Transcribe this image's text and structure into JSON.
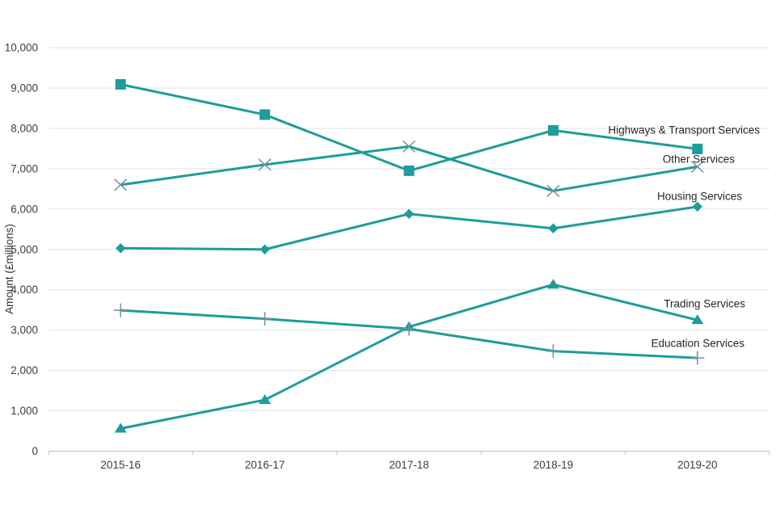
{
  "chart_data": {
    "type": "line",
    "title": "",
    "xlabel": "",
    "ylabel": "Amount (£millions)",
    "x": [
      "2015-16",
      "2016-17",
      "2017-18",
      "2018-19",
      "2019-20"
    ],
    "ylim": [
      0,
      10000
    ],
    "ytick_step": 1000,
    "ytick_labels": [
      "0",
      "1,000",
      "2,000",
      "3,000",
      "4,000",
      "5,000",
      "6,000",
      "7,000",
      "8,000",
      "9,000",
      "10,000"
    ],
    "grid": "horizontal",
    "legend_position": "inline-end-of-line-labels",
    "series": [
      {
        "name": "Highways & Transport Services",
        "marker": "square",
        "values": [
          9090,
          8340,
          6950,
          7950,
          7490
        ],
        "line_color": "#1e9c9a",
        "marker_color": "#1e9c9a"
      },
      {
        "name": "Other Services",
        "marker": "x",
        "values": [
          6600,
          7100,
          7550,
          6450,
          7050
        ],
        "line_color": "#1e9c9a",
        "marker_color": "#71929c"
      },
      {
        "name": "Housing Services",
        "marker": "diamond",
        "values": [
          5030,
          5000,
          5880,
          5520,
          6060
        ],
        "line_color": "#1e9c9a",
        "marker_color": "#1e9c9a"
      },
      {
        "name": "Trading Services",
        "marker": "triangle",
        "values": [
          560,
          1270,
          3080,
          4130,
          3250
        ],
        "line_color": "#1e9c9a",
        "marker_color": "#1e9c9a"
      },
      {
        "name": "Education Services",
        "marker": "plus",
        "values": [
          3490,
          3280,
          3030,
          2480,
          2310
        ],
        "line_color": "#1e9c9a",
        "marker_color": "#71929c"
      }
    ],
    "colors": {
      "accent_teal": "#1e9c9a",
      "muted_marker": "#71929c",
      "gridline": "#e3e3e3",
      "axis_line": "#c0c0c0",
      "tick_text": "#3d3d3d",
      "label_text": "#262626"
    }
  }
}
